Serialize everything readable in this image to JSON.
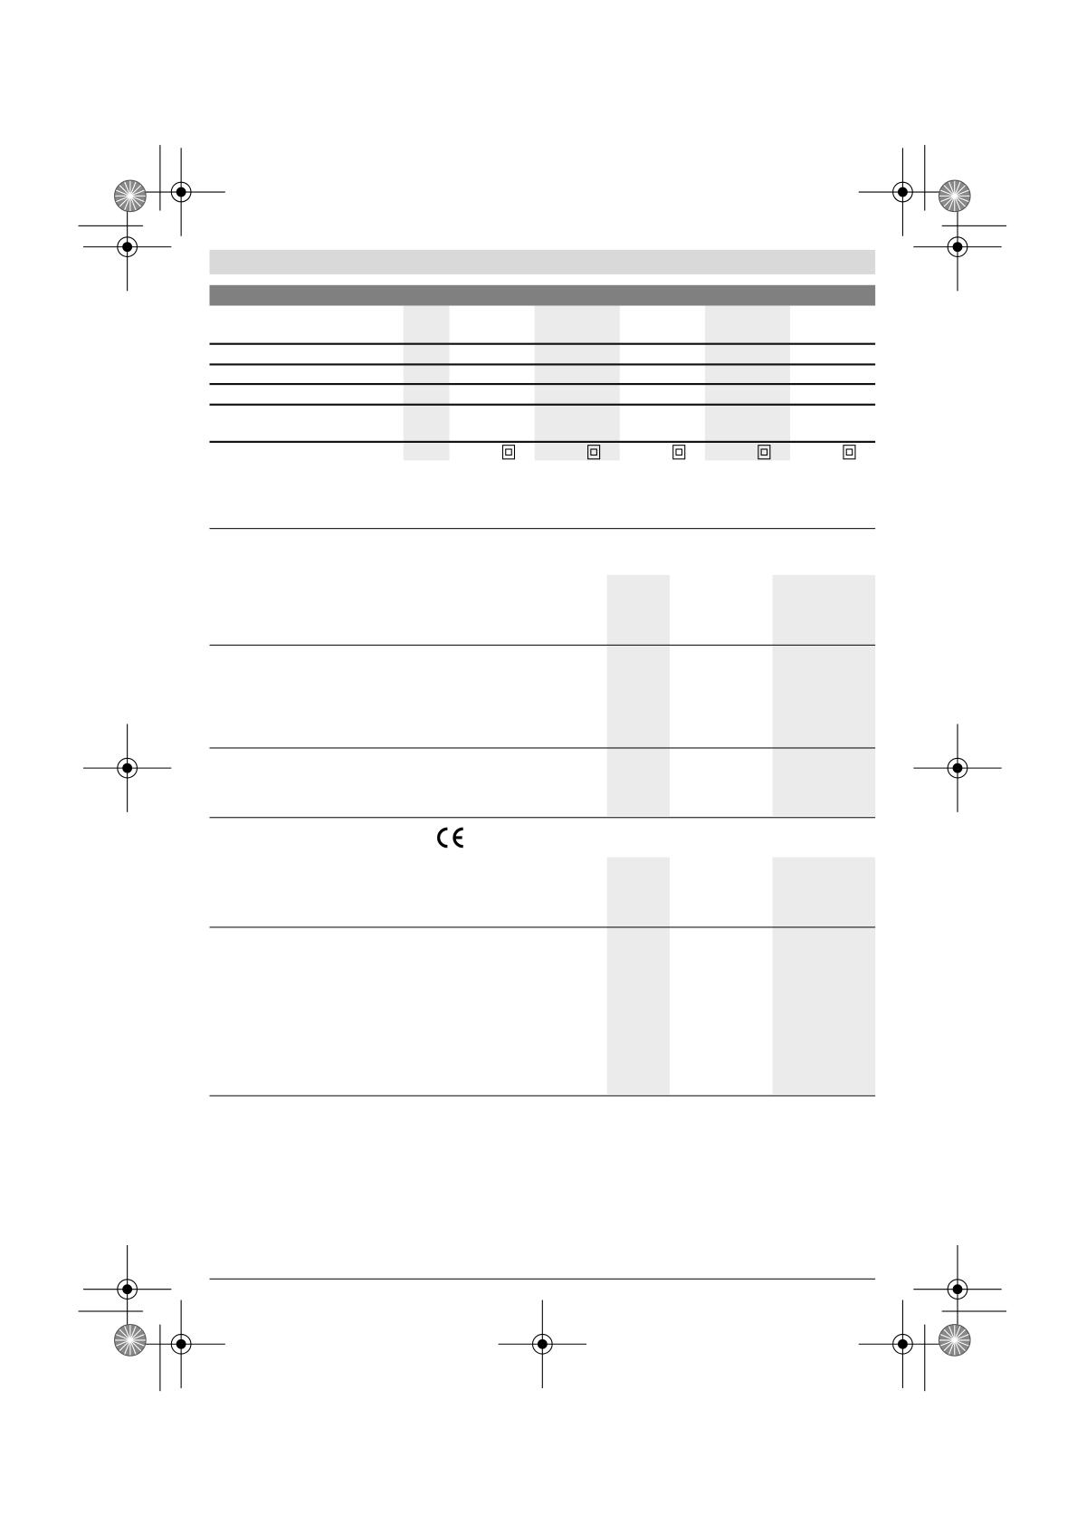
{
  "colors": {
    "header_light": "#d9d9d9",
    "header_dark": "#808080",
    "column_shade": "#ebebeb",
    "rule": "#111111"
  },
  "table1": {
    "symbols": [
      "double-insulation-icon",
      "double-insulation-icon",
      "double-insulation-icon",
      "double-insulation-icon",
      "double-insulation-icon"
    ]
  },
  "table2": {
    "symbols": [
      "ce-mark-icon"
    ]
  },
  "ce_mark": "CE"
}
